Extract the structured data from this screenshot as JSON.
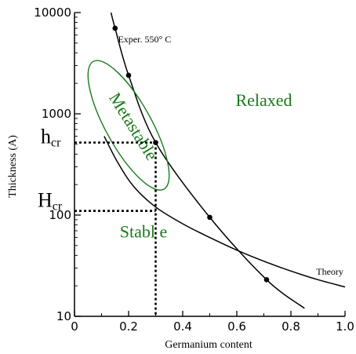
{
  "colors": {
    "ink": "#000000",
    "region": "#1a7a1a"
  },
  "chart_data": {
    "type": "line",
    "xlabel": "Germanium content",
    "ylabel": "Thickness (A)",
    "xlim": [
      0,
      1.0
    ],
    "ylim": [
      10,
      10000
    ],
    "yscale": "log",
    "x_ticks": [
      {
        "v": 0,
        "label": "0"
      },
      {
        "v": 0.2,
        "label": "0.2"
      },
      {
        "v": 0.4,
        "label": "0.4"
      },
      {
        "v": 0.6,
        "label": "0.6"
      },
      {
        "v": 0.8,
        "label": "0.8"
      },
      {
        "v": 1.0,
        "label": "1.0"
      }
    ],
    "y_ticks": [
      {
        "v": 10,
        "label": "10"
      },
      {
        "v": 100,
        "label": "100"
      },
      {
        "v": 1000,
        "label": "1000"
      },
      {
        "v": 10000,
        "label": "10000"
      }
    ],
    "series": [
      {
        "name": "Exper. 550° C",
        "style": "line+markers",
        "points": [
          [
            0.135,
            10000
          ],
          [
            0.15,
            7000
          ],
          [
            0.2,
            2400
          ],
          [
            0.3,
            520
          ],
          [
            0.5,
            95
          ],
          [
            0.71,
            23
          ],
          [
            0.85,
            12
          ]
        ],
        "markers": [
          [
            0.15,
            7000
          ],
          [
            0.2,
            2400
          ],
          [
            0.3,
            520
          ],
          [
            0.5,
            95
          ],
          [
            0.71,
            23
          ]
        ]
      },
      {
        "name": "Theory",
        "style": "line",
        "points": [
          [
            0.11,
            600
          ],
          [
            0.16,
            330
          ],
          [
            0.22,
            190
          ],
          [
            0.3,
            120
          ],
          [
            0.4,
            82
          ],
          [
            0.5,
            60
          ],
          [
            0.6,
            45
          ],
          [
            0.7,
            35
          ],
          [
            0.8,
            28
          ],
          [
            0.9,
            23
          ],
          [
            1.0,
            19.5
          ]
        ],
        "markers": []
      }
    ],
    "regions": [
      {
        "label": "Relaxed",
        "x": 0.7,
        "y": 1200,
        "rotate": 0
      },
      {
        "label": "Metastable",
        "x": 0.2,
        "y": 700,
        "rotate": 58
      },
      {
        "label": "Stabl e",
        "x": 0.255,
        "y": 60,
        "rotate": 0
      }
    ],
    "metastable_ellipse": {
      "cx": 0.2,
      "cy": 770,
      "rx_px": 29,
      "ry_px": 93,
      "rotate": -29
    },
    "critical_thickness": [
      {
        "label": "h",
        "sub": "cr",
        "x": 0.3,
        "y": 520
      },
      {
        "label": "H",
        "sub": "cr",
        "x": 0.3,
        "y": 110
      }
    ]
  }
}
